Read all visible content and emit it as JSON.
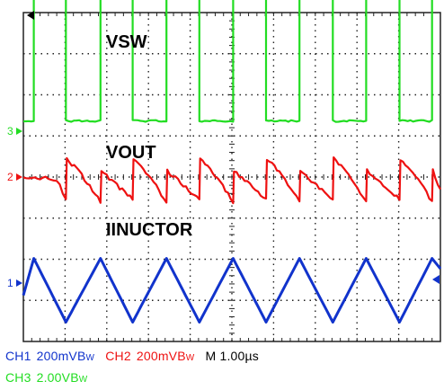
{
  "chart_data": {
    "type": "line",
    "title": "",
    "xlabel": "",
    "ylabel": "",
    "grid": true,
    "divisions": {
      "x": 10,
      "y": 8
    },
    "trigger_marker": "arrow-left",
    "series": [
      {
        "name": "VSW",
        "channel_label": "VSW",
        "channel": 3,
        "color": "#22dd22",
        "unit_scale": "2.00V",
        "x": [
          0,
          0.25,
          0.25,
          1.02,
          1.02,
          1.85,
          1.85,
          2.62,
          2.62,
          3.43,
          3.43,
          4.22,
          4.22,
          5.03,
          5.03,
          5.82,
          5.82,
          6.62,
          6.62,
          7.42,
          7.42,
          8.22,
          8.22,
          9.02,
          9.02,
          9.8,
          9.8,
          10
        ],
        "y": [
          0.25,
          0.25,
          3.3,
          3.3,
          0.25,
          0.25,
          3.3,
          3.3,
          0.25,
          0.25,
          3.3,
          3.3,
          0.25,
          0.25,
          3.3,
          3.3,
          0.25,
          0.25,
          3.3,
          3.3,
          0.25,
          0.25,
          3.3,
          3.3,
          0.25,
          0.25,
          3.3,
          3.3
        ]
      },
      {
        "name": "VOUT",
        "channel_label": "VOUT",
        "channel": 2,
        "color": "#ee1111",
        "unit_scale": "200mV",
        "x": [
          0,
          0.8,
          1.02,
          1.04,
          1.4,
          1.85,
          1.87,
          2.62,
          2.64,
          3.0,
          3.43,
          3.45,
          4.22,
          4.24,
          4.6,
          5.03,
          5.05,
          5.82,
          5.84,
          6.2,
          6.62,
          6.64,
          7.42,
          7.44,
          7.8,
          8.22,
          8.24,
          9.02,
          9.04,
          9.4,
          9.8,
          9.82,
          10
        ],
        "y": [
          0.0,
          -0.05,
          -0.55,
          0.45,
          0.05,
          -0.6,
          0.15,
          -0.55,
          0.45,
          0.05,
          -0.6,
          0.15,
          -0.55,
          0.45,
          0.05,
          -0.6,
          0.15,
          -0.55,
          0.45,
          0.05,
          -0.6,
          0.15,
          -0.55,
          0.45,
          0.05,
          -0.6,
          0.15,
          -0.55,
          0.45,
          0.05,
          -0.6,
          0.15,
          -0.3
        ]
      },
      {
        "name": "IINUCTOR",
        "channel_label": "IINUCTOR",
        "channel": 1,
        "color": "#1133cc",
        "unit_scale": "200mV",
        "x": [
          0,
          0.25,
          1.02,
          1.85,
          2.62,
          3.43,
          4.22,
          5.03,
          5.82,
          6.62,
          7.42,
          8.22,
          9.02,
          9.8,
          10
        ],
        "y": [
          -0.3,
          0.6,
          -0.95,
          0.6,
          -0.95,
          0.6,
          -0.95,
          0.6,
          -0.95,
          0.6,
          -0.95,
          0.6,
          -0.95,
          0.6,
          0.35
        ]
      }
    ]
  },
  "markers": [
    {
      "label": "3",
      "channel": 3
    },
    {
      "label": "2",
      "channel": 2
    },
    {
      "label": "1",
      "channel": 1
    }
  ],
  "status": {
    "ch1": {
      "label": "CH1",
      "value": "200mVB",
      "suffix": "W"
    },
    "ch2": {
      "label": "CH2",
      "value": "200mVB",
      "suffix": "W"
    },
    "timebase": "M 1.00µs",
    "ch3": {
      "label": "CH3",
      "value": "2.00VB",
      "suffix": "W"
    }
  },
  "colors": {
    "grid": "#222222",
    "ch1": "#1133cc",
    "ch2": "#ee1111",
    "ch3": "#22dd22",
    "text": "#000000"
  }
}
